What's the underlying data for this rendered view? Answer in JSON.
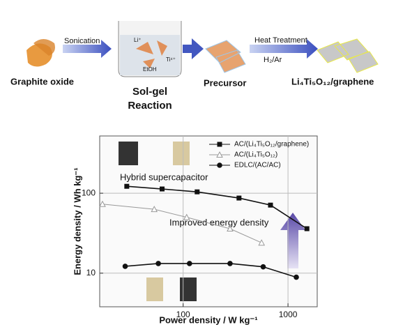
{
  "diagram": {
    "start": "Graphite oxide",
    "step1": "Sonication",
    "beaker_ion": "Li⁺",
    "beaker_ion2": "Ti⁴⁺",
    "beaker_solvent": "EtOH",
    "reaction_line1": "Sol-gel",
    "reaction_line2": "Reaction",
    "precursor": "Precursor",
    "step2": "Heat Treatment",
    "step2_gas": "H₂/Ar",
    "product": "Li₄Ti₅O₁₂/graphene"
  },
  "chart_data": {
    "type": "line",
    "xlabel": "Power density / W kg⁻¹",
    "ylabel": "Energy density / Wh kg⁻¹",
    "log_x": true,
    "log_y": true,
    "xlim": [
      16,
      1900
    ],
    "ylim": [
      3.8,
      520
    ],
    "xticks": [
      100,
      1000
    ],
    "yticks": [
      10,
      100
    ],
    "grid": true,
    "legend": "upper right",
    "annotations": [
      "Hybrid supercapacitor",
      "Improved energy density"
    ],
    "series": [
      {
        "name": "AC/(Li₄Ti₅O₁₂/graphene)",
        "color": "#111111",
        "marker": "square",
        "x": [
          29,
          63,
          136,
          341,
          681,
          1515
        ],
        "values": [
          122,
          113,
          104,
          87,
          71,
          36
        ]
      },
      {
        "name": "AC/(Li₄Ti₅O₁₂)",
        "color": "#999999",
        "marker": "triangle-open",
        "x": [
          17,
          53,
          108,
          280,
          560
        ],
        "values": [
          73,
          63,
          50,
          36,
          24
        ]
      },
      {
        "name": "EDLC/(AC/AC)",
        "color": "#111111",
        "marker": "circle",
        "x": [
          28,
          58,
          115,
          280,
          580,
          1200
        ],
        "values": [
          12.2,
          13.2,
          13.2,
          13.2,
          12,
          8.9
        ]
      }
    ]
  }
}
